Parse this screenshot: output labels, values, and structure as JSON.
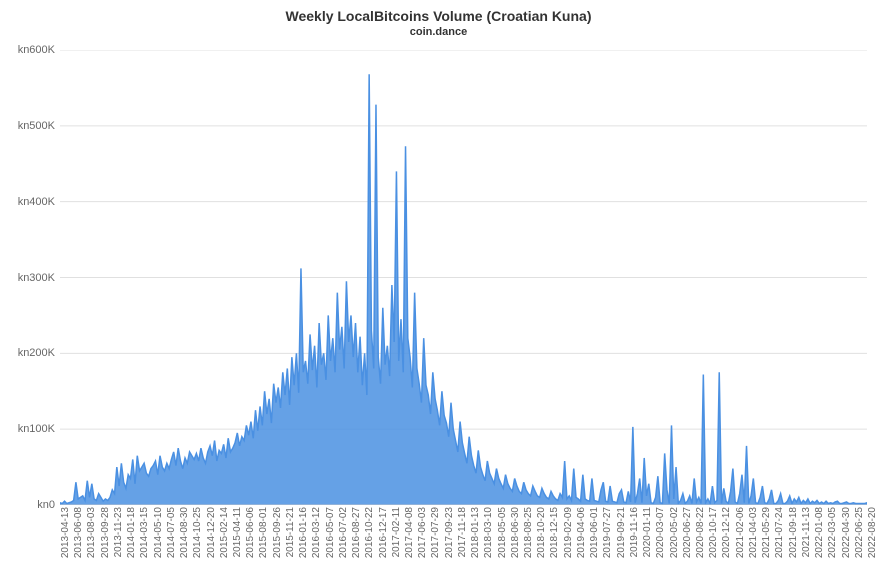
{
  "chart": {
    "title": "Weekly LocalBitcoins Volume (Croatian Kuna)",
    "subtitle": "coin.dance",
    "title_fontsize": 14,
    "subtitle_fontsize": 11,
    "title_color": "#333333",
    "type": "area",
    "background_color": "#ffffff",
    "grid_color": "#e0e0e0",
    "axis_color": "#cccccc",
    "series_color": "#4a90e2",
    "series_fill_opacity": 0.85,
    "line_width": 1.5,
    "ylim": [
      0,
      600000
    ],
    "ytick_step": 100000,
    "ytick_prefix": "kn",
    "ytick_suffix": "K",
    "yticks": [
      {
        "value": 0,
        "label": "kn0"
      },
      {
        "value": 100000,
        "label": "kn100K"
      },
      {
        "value": 200000,
        "label": "kn200K"
      },
      {
        "value": 300000,
        "label": "kn300K"
      },
      {
        "value": 400000,
        "label": "kn400K"
      },
      {
        "value": 500000,
        "label": "kn500K"
      },
      {
        "value": 600000,
        "label": "kn600K"
      }
    ],
    "xticks": [
      "2013-04-13",
      "2013-06-08",
      "2013-08-03",
      "2013-09-28",
      "2013-11-23",
      "2014-01-18",
      "2014-03-15",
      "2014-05-10",
      "2014-07-05",
      "2014-08-30",
      "2014-10-25",
      "2014-12-20",
      "2015-02-14",
      "2015-04-11",
      "2015-06-06",
      "2015-08-01",
      "2015-09-26",
      "2015-11-21",
      "2016-01-16",
      "2016-03-12",
      "2016-05-07",
      "2016-07-02",
      "2016-08-27",
      "2016-10-22",
      "2016-12-17",
      "2017-02-11",
      "2017-04-08",
      "2017-06-03",
      "2017-07-29",
      "2017-09-23",
      "2017-11-18",
      "2018-01-13",
      "2018-03-10",
      "2018-05-05",
      "2018-06-30",
      "2018-08-25",
      "2018-10-20",
      "2018-12-15",
      "2019-02-09",
      "2019-04-06",
      "2019-06-01",
      "2019-07-27",
      "2019-09-21",
      "2019-11-16",
      "2020-01-11",
      "2020-03-07",
      "2020-05-02",
      "2020-06-27",
      "2020-08-22",
      "2020-10-17",
      "2020-12-12",
      "2021-02-06",
      "2021-04-03",
      "2021-05-29",
      "2021-07-24",
      "2021-09-18",
      "2021-11-13",
      "2022-01-08",
      "2022-03-05",
      "2022-04-30",
      "2022-06-25",
      "2022-08-20"
    ],
    "values": [
      3,
      2,
      5,
      2,
      3,
      4,
      6,
      30,
      8,
      10,
      12,
      6,
      32,
      10,
      28,
      8,
      6,
      15,
      10,
      5,
      8,
      6,
      10,
      20,
      15,
      50,
      25,
      55,
      30,
      22,
      40,
      35,
      60,
      28,
      65,
      45,
      50,
      55,
      42,
      38,
      48,
      52,
      58,
      40,
      65,
      50,
      45,
      55,
      48,
      60,
      70,
      52,
      75,
      58,
      48,
      62,
      55,
      70,
      65,
      60,
      68,
      58,
      75,
      62,
      55,
      70,
      78,
      65,
      85,
      58,
      72,
      68,
      80,
      62,
      88,
      70,
      75,
      82,
      95,
      78,
      90,
      85,
      105,
      92,
      110,
      88,
      125,
      98,
      130,
      105,
      150,
      120,
      140,
      108,
      160,
      135,
      155,
      128,
      175,
      145,
      180,
      132,
      195,
      158,
      200,
      148,
      312,
      175,
      190,
      160,
      225,
      178,
      210,
      155,
      240,
      185,
      200,
      165,
      250,
      190,
      220,
      175,
      280,
      205,
      235,
      180,
      295,
      215,
      250,
      195,
      240,
      175,
      222,
      158,
      200,
      145,
      568,
      230,
      180,
      528,
      195,
      160,
      260,
      185,
      210,
      170,
      290,
      215,
      440,
      190,
      245,
      175,
      473,
      220,
      195,
      155,
      280,
      180,
      160,
      135,
      220,
      158,
      145,
      120,
      175,
      140,
      125,
      105,
      150,
      118,
      108,
      90,
      135,
      100,
      85,
      70,
      110,
      82,
      68,
      55,
      90,
      65,
      52,
      42,
      72,
      50,
      40,
      32,
      58,
      42,
      35,
      28,
      48,
      35,
      28,
      22,
      40,
      28,
      22,
      18,
      35,
      25,
      18,
      15,
      30,
      20,
      15,
      12,
      25,
      18,
      12,
      10,
      22,
      15,
      10,
      8,
      18,
      12,
      8,
      6,
      15,
      10,
      58,
      8,
      12,
      6,
      48,
      10,
      8,
      5,
      40,
      8,
      6,
      5,
      35,
      6,
      5,
      4,
      20,
      30,
      5,
      4,
      25,
      5,
      4,
      3,
      15,
      20,
      4,
      3,
      18,
      4,
      103,
      3,
      15,
      35,
      3,
      62,
      12,
      28,
      3,
      2,
      10,
      38,
      3,
      2,
      68,
      20,
      2,
      105,
      8,
      50,
      2,
      6,
      15,
      2,
      5,
      12,
      2,
      35,
      4,
      10,
      2,
      172,
      3,
      8,
      2,
      25,
      3,
      6,
      175,
      2,
      22,
      5,
      2,
      18,
      48,
      4,
      2,
      15,
      40,
      3,
      78,
      2,
      12,
      35,
      3,
      2,
      10,
      25,
      3,
      2,
      8,
      20,
      2,
      2,
      6,
      15,
      2,
      2,
      5,
      12,
      2,
      8,
      4,
      10,
      2,
      6,
      3,
      8,
      2,
      5,
      3,
      6,
      2,
      4,
      2,
      5,
      2,
      3,
      2,
      4,
      5,
      2,
      2,
      3,
      4,
      2,
      2,
      3,
      2,
      2,
      2,
      2,
      2,
      3
    ]
  }
}
